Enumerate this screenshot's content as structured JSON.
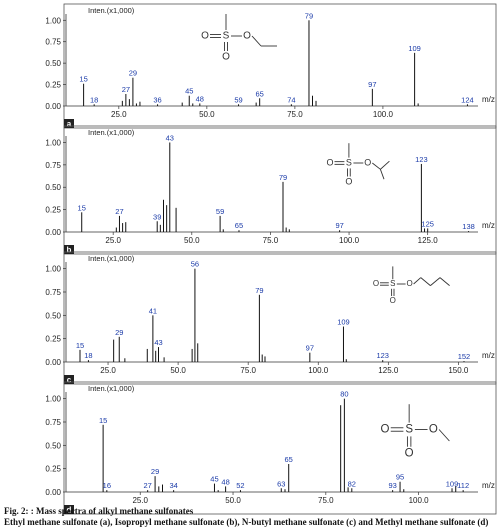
{
  "caption": {
    "title": "Fig. 2: : Mass spectra of alkyl methane sulfonates",
    "description": "Ethyl methane sulfonate (a), Isopropyl methane sulfonate (b), N-butyl methane sulfonate (c) and Methyl methane sulfonate (d)"
  },
  "colors": {
    "peak": "#111111",
    "label": "#1a3aa8",
    "frame": "#555555"
  },
  "chart_data": [
    {
      "type": "bar",
      "panel": "a",
      "header": "Inten.(x1,000)",
      "xlabel": "m/z",
      "xlim": [
        10,
        127
      ],
      "ylim": [
        0,
        1.05
      ],
      "x_ticks": [
        25.0,
        50.0,
        75.0,
        100.0
      ],
      "x_tick_labels": [
        "25.0",
        "50.0",
        "75.0",
        "100.0"
      ],
      "y_ticks": [
        0,
        0.25,
        0.5,
        0.75,
        1.0
      ],
      "y_tick_labels": [
        "0.00",
        "0.25",
        "0.50",
        "0.75",
        "1.00"
      ],
      "structure": "ethyl",
      "peaks": [
        {
          "x": 15,
          "y": 0.26,
          "label": "15"
        },
        {
          "x": 18,
          "y": 0.02,
          "label": "18"
        },
        {
          "x": 26,
          "y": 0.06
        },
        {
          "x": 27,
          "y": 0.14,
          "label": "27"
        },
        {
          "x": 28,
          "y": 0.08
        },
        {
          "x": 29,
          "y": 0.33,
          "label": "29"
        },
        {
          "x": 30,
          "y": 0.03
        },
        {
          "x": 31,
          "y": 0.05
        },
        {
          "x": 36,
          "y": 0.02,
          "label": "36"
        },
        {
          "x": 43,
          "y": 0.04
        },
        {
          "x": 45,
          "y": 0.12,
          "label": "45"
        },
        {
          "x": 46,
          "y": 0.03
        },
        {
          "x": 48,
          "y": 0.03,
          "label": "48"
        },
        {
          "x": 59,
          "y": 0.02,
          "label": "59"
        },
        {
          "x": 64,
          "y": 0.04
        },
        {
          "x": 65,
          "y": 0.09,
          "label": "65"
        },
        {
          "x": 74,
          "y": 0.02,
          "label": "74"
        },
        {
          "x": 79,
          "y": 1.0,
          "label": "79"
        },
        {
          "x": 80,
          "y": 0.12
        },
        {
          "x": 81,
          "y": 0.06
        },
        {
          "x": 97,
          "y": 0.2,
          "label": "97"
        },
        {
          "x": 109,
          "y": 0.62,
          "label": "109"
        },
        {
          "x": 110,
          "y": 0.03
        },
        {
          "x": 124,
          "y": 0.02,
          "label": "124"
        }
      ]
    },
    {
      "type": "bar",
      "panel": "b",
      "header": "Inten.(x1,000)",
      "xlabel": "m/z",
      "xlim": [
        10,
        141
      ],
      "ylim": [
        0,
        1.05
      ],
      "x_ticks": [
        25.0,
        50.0,
        75.0,
        100.0,
        125.0
      ],
      "x_tick_labels": [
        "25.0",
        "50.0",
        "75.0",
        "100.0",
        "125.0"
      ],
      "y_ticks": [
        0,
        0.25,
        0.5,
        0.75,
        1.0
      ],
      "y_tick_labels": [
        "0.00",
        "0.25",
        "0.50",
        "0.75",
        "1.00"
      ],
      "structure": "isopropyl",
      "peaks": [
        {
          "x": 15,
          "y": 0.22,
          "label": "15"
        },
        {
          "x": 26,
          "y": 0.05
        },
        {
          "x": 27,
          "y": 0.18,
          "label": "27"
        },
        {
          "x": 28,
          "y": 0.1
        },
        {
          "x": 29,
          "y": 0.11
        },
        {
          "x": 39,
          "y": 0.12,
          "label": "39"
        },
        {
          "x": 40,
          "y": 0.08
        },
        {
          "x": 41,
          "y": 0.36
        },
        {
          "x": 42,
          "y": 0.3
        },
        {
          "x": 43,
          "y": 1.0,
          "label": "43"
        },
        {
          "x": 45,
          "y": 0.27
        },
        {
          "x": 59,
          "y": 0.18,
          "label": "59"
        },
        {
          "x": 60,
          "y": 0.03
        },
        {
          "x": 65,
          "y": 0.02,
          "label": "65"
        },
        {
          "x": 79,
          "y": 0.56,
          "label": "79"
        },
        {
          "x": 80,
          "y": 0.05
        },
        {
          "x": 81,
          "y": 0.03
        },
        {
          "x": 97,
          "y": 0.02,
          "label": "97"
        },
        {
          "x": 123,
          "y": 0.76,
          "label": "123"
        },
        {
          "x": 124,
          "y": 0.04
        },
        {
          "x": 125,
          "y": 0.04,
          "label": "125"
        },
        {
          "x": 138,
          "y": 0.01,
          "label": "138"
        }
      ]
    },
    {
      "type": "bar",
      "panel": "c",
      "header": "Inten.(x1,000)",
      "xlabel": "m/z",
      "xlim": [
        10,
        157
      ],
      "ylim": [
        0,
        1.05
      ],
      "x_ticks": [
        25.0,
        50.0,
        75.0,
        100.0,
        125.0,
        150.0
      ],
      "x_tick_labels": [
        "25.0",
        "50.0",
        "75.0",
        "100.0",
        "125.0",
        "150.0"
      ],
      "y_ticks": [
        0,
        0.25,
        0.5,
        0.75,
        1.0
      ],
      "y_tick_labels": [
        "0.00",
        "0.25",
        "0.50",
        "0.75",
        "1.00"
      ],
      "structure": "butyl",
      "peaks": [
        {
          "x": 15,
          "y": 0.13,
          "label": "15"
        },
        {
          "x": 18,
          "y": 0.02,
          "label": "18"
        },
        {
          "x": 27,
          "y": 0.24
        },
        {
          "x": 29,
          "y": 0.27,
          "label": "29"
        },
        {
          "x": 31,
          "y": 0.04
        },
        {
          "x": 39,
          "y": 0.14
        },
        {
          "x": 41,
          "y": 0.5,
          "label": "41"
        },
        {
          "x": 42,
          "y": 0.12
        },
        {
          "x": 43,
          "y": 0.16,
          "label": "43"
        },
        {
          "x": 45,
          "y": 0.05
        },
        {
          "x": 55,
          "y": 0.14
        },
        {
          "x": 56,
          "y": 1.0,
          "label": "56"
        },
        {
          "x": 57,
          "y": 0.2
        },
        {
          "x": 79,
          "y": 0.72,
          "label": "79"
        },
        {
          "x": 80,
          "y": 0.08
        },
        {
          "x": 81,
          "y": 0.06
        },
        {
          "x": 97,
          "y": 0.1,
          "label": "97"
        },
        {
          "x": 109,
          "y": 0.38,
          "label": "109"
        },
        {
          "x": 110,
          "y": 0.03
        },
        {
          "x": 123,
          "y": 0.02,
          "label": "123"
        },
        {
          "x": 152,
          "y": 0.01,
          "label": "152"
        }
      ]
    },
    {
      "type": "bar",
      "panel": "d",
      "header": "Inten.(x1,000)",
      "xlabel": "m/z",
      "xlim": [
        5,
        116
      ],
      "ylim": [
        0,
        1.05
      ],
      "x_ticks": [
        25.0,
        50.0,
        75.0,
        100.0
      ],
      "x_tick_labels": [
        "25.0",
        "50.0",
        "75.0",
        "100.0"
      ],
      "y_ticks": [
        0,
        0.25,
        0.5,
        0.75,
        1.0
      ],
      "y_tick_labels": [
        "0.00",
        "0.25",
        "0.50",
        "0.75",
        "1.00"
      ],
      "structure": "methyl",
      "peaks": [
        {
          "x": 15,
          "y": 0.72,
          "label": "15"
        },
        {
          "x": 16,
          "y": 0.02,
          "label": "16"
        },
        {
          "x": 27,
          "y": 0.02,
          "label": "27"
        },
        {
          "x": 29,
          "y": 0.17,
          "label": "29"
        },
        {
          "x": 30,
          "y": 0.06
        },
        {
          "x": 31,
          "y": 0.08
        },
        {
          "x": 34,
          "y": 0.02,
          "label": "34"
        },
        {
          "x": 45,
          "y": 0.09,
          "label": "45"
        },
        {
          "x": 46,
          "y": 0.02
        },
        {
          "x": 48,
          "y": 0.06,
          "label": "48"
        },
        {
          "x": 52,
          "y": 0.02,
          "label": "52"
        },
        {
          "x": 63,
          "y": 0.04,
          "label": "63"
        },
        {
          "x": 64,
          "y": 0.03
        },
        {
          "x": 65,
          "y": 0.3,
          "label": "65"
        },
        {
          "x": 79,
          "y": 0.93
        },
        {
          "x": 80,
          "y": 1.0,
          "label": "80"
        },
        {
          "x": 81,
          "y": 0.05
        },
        {
          "x": 82,
          "y": 0.04,
          "label": "82"
        },
        {
          "x": 93,
          "y": 0.02,
          "label": "93"
        },
        {
          "x": 95,
          "y": 0.11,
          "label": "95"
        },
        {
          "x": 96,
          "y": 0.03
        },
        {
          "x": 109,
          "y": 0.04,
          "label": "109"
        },
        {
          "x": 110,
          "y": 0.06
        },
        {
          "x": 112,
          "y": 0.02,
          "label": "112"
        }
      ]
    }
  ]
}
